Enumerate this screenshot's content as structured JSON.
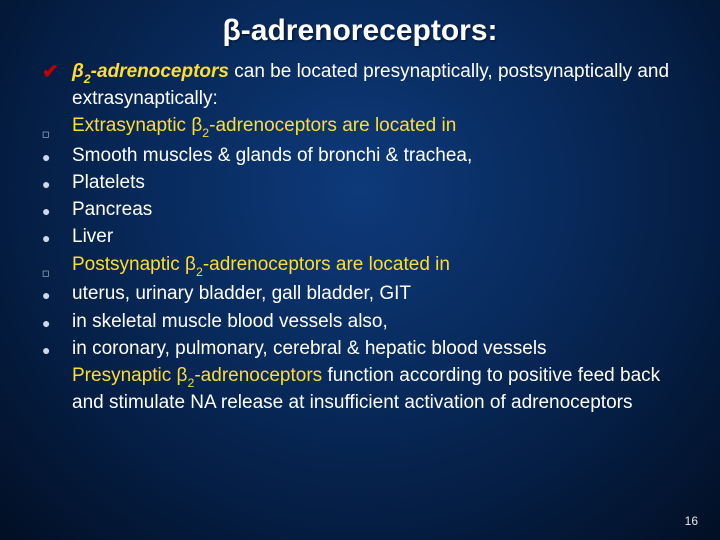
{
  "slide": {
    "background_gradient": [
      "#0e3a7a",
      "#082a5c",
      "#041a3c",
      "#020f24"
    ],
    "title": "β-adrenoreceptors:",
    "title_color": "#ffffff",
    "title_fontsize": 30,
    "accent_color": "#ffdd33",
    "body_color": "#ffffff",
    "check_color": "#c00000",
    "bullet_color": "#cfd8e8",
    "body_fontsize": 19,
    "page_number": "16",
    "lines": [
      {
        "marker": "check",
        "lead_html": "β<sub>2</sub>-adrenoceptors ",
        "lead_style": "yellow ital",
        "rest": "can be located presynaptically, postsynaptically and extrasynaptically:",
        "rest_color": "white"
      },
      {
        "marker": "square",
        "lead_html": "Extrasynaptic β<sub>2</sub>-adrenoceptors are located in",
        "lead_style": "yellow",
        "rest": "",
        "rest_color": "white"
      },
      {
        "marker": "disc",
        "lead_html": "Smooth muscles & glands of bronchi & trachea,",
        "lead_style": "white",
        "rest": "",
        "rest_color": "white"
      },
      {
        "marker": "disc",
        "lead_html": "Platelets",
        "lead_style": "white",
        "rest": "",
        "rest_color": "white"
      },
      {
        "marker": "disc",
        "lead_html": "Pancreas",
        "lead_style": "white",
        "rest": "",
        "rest_color": "white"
      },
      {
        "marker": "disc",
        "lead_html": "Liver",
        "lead_style": "white",
        "rest": "",
        "rest_color": "white"
      },
      {
        "marker": "square",
        "lead_html": "Postsynaptic β<sub>2</sub>-adrenoceptors are located in",
        "lead_style": "yellow",
        "rest": "",
        "rest_color": "white"
      },
      {
        "marker": "disc",
        "lead_html": "uterus, urinary bladder, gall bladder, GIT",
        "lead_style": "white",
        "rest": "",
        "rest_color": "white"
      },
      {
        "marker": "disc",
        "lead_html": "in skeletal muscle blood vessels also,",
        "lead_style": "white",
        "rest": "",
        "rest_color": "white"
      },
      {
        "marker": "disc",
        "lead_html": "in coronary, pulmonary, cerebral & hepatic blood vessels",
        "lead_style": "white",
        "rest": "",
        "rest_color": "white"
      }
    ],
    "closing": {
      "lead_html": "Presynaptic β<sub>2</sub>-adrenoceptors  ",
      "lead_style": "yellow",
      "rest": "function according to positive feed back and stimulate NA release at insufficient activation of adrenoceptors",
      "rest_color": "white"
    }
  }
}
